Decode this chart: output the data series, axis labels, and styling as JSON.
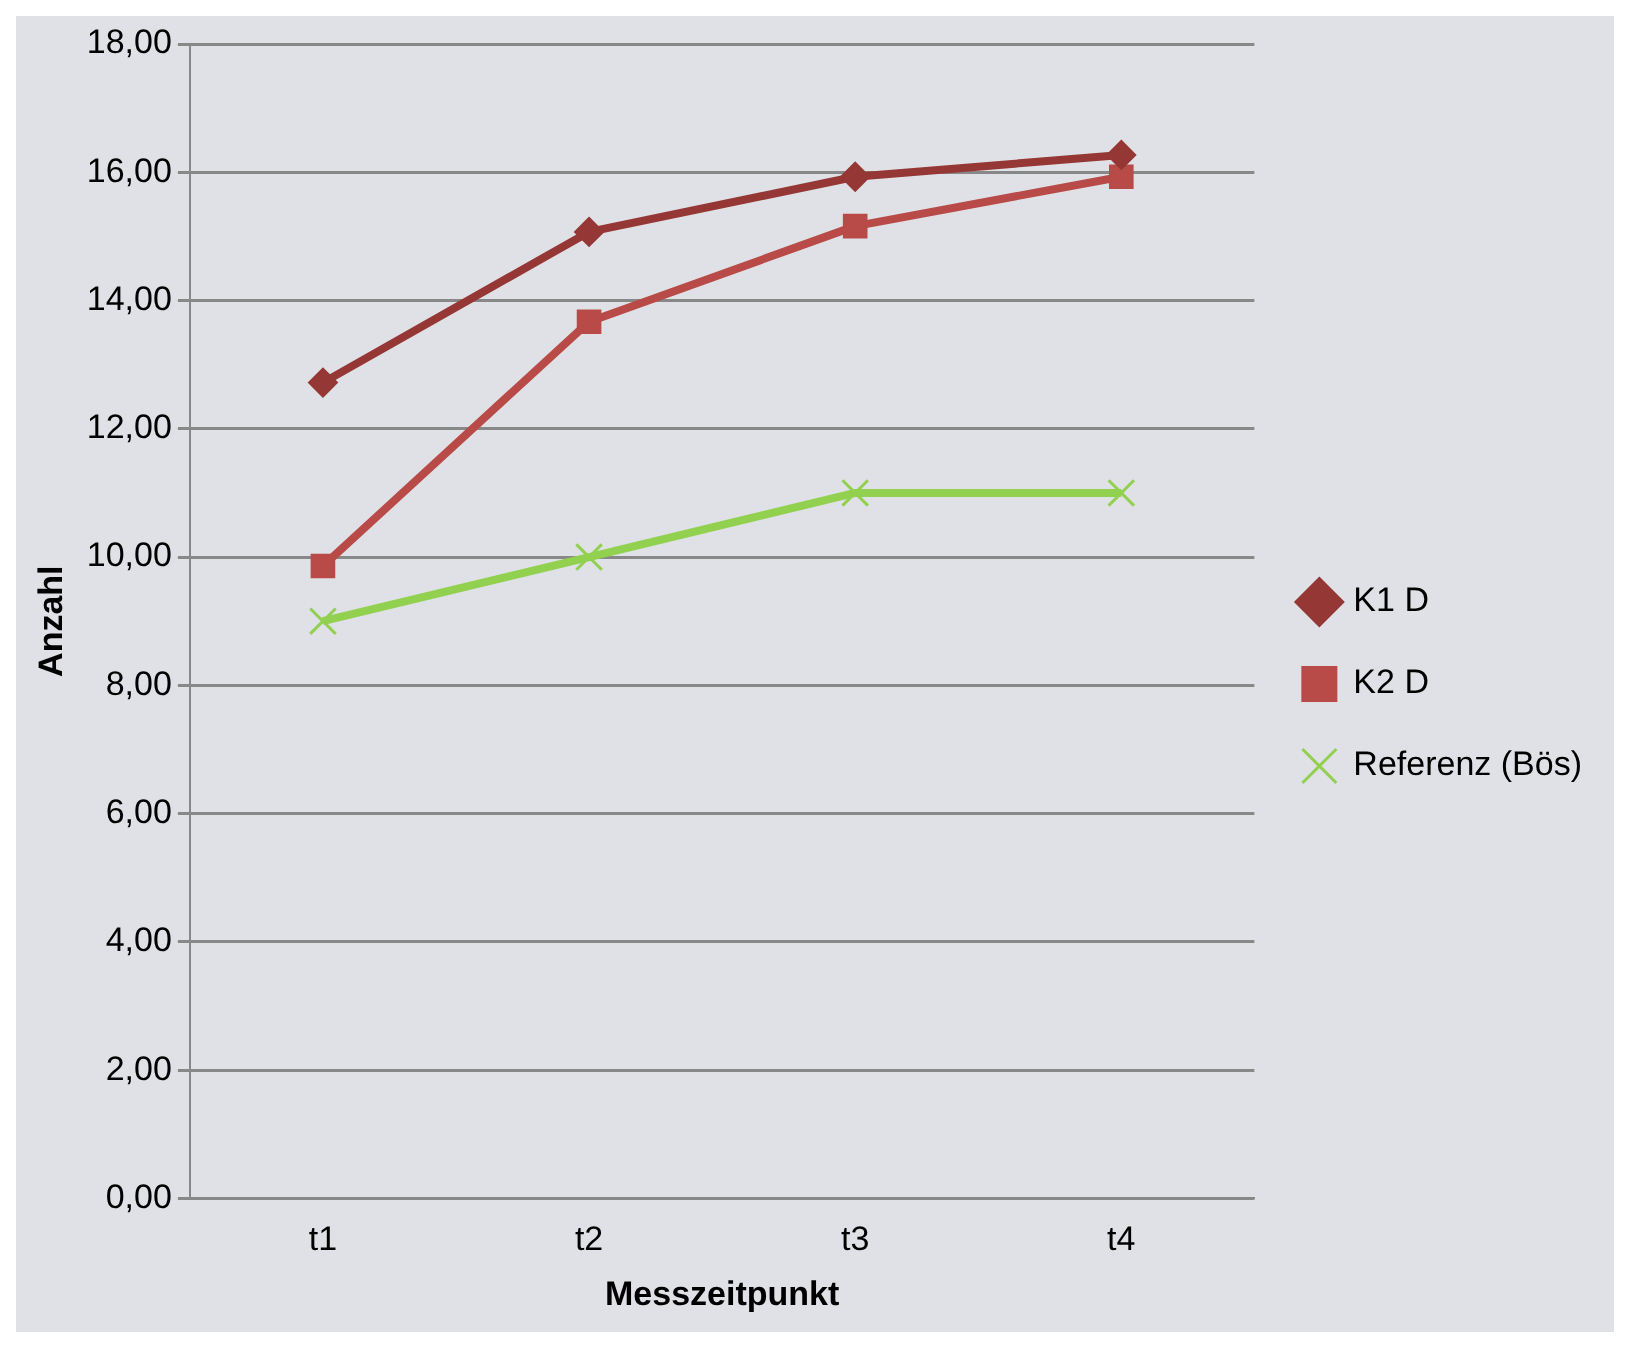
{
  "chart_data": {
    "type": "line",
    "xlabel": "Messzeitpunkt",
    "ylabel": "Anzahl",
    "categories": [
      "t1",
      "t2",
      "t3",
      "t4"
    ],
    "series": [
      {
        "name": "K1 D",
        "color": "#953735",
        "marker": "diamond",
        "values": [
          12.72,
          15.07,
          15.93,
          16.27
        ]
      },
      {
        "name": "K2 D",
        "color": "#b84a47",
        "marker": "square",
        "values": [
          9.86,
          13.67,
          15.16,
          15.93
        ]
      },
      {
        "name": "Referenz (Bös)",
        "color": "#92d050",
        "marker": "cross",
        "values": [
          9,
          10,
          11,
          11
        ]
      }
    ],
    "ylim": [
      0,
      18
    ],
    "yticks": [
      {
        "value": 0,
        "label": "0,00"
      },
      {
        "value": 2,
        "label": "2,00"
      },
      {
        "value": 4,
        "label": "4,00"
      },
      {
        "value": 6,
        "label": "6,00"
      },
      {
        "value": 8,
        "label": "8,00"
      },
      {
        "value": 10,
        "label": "10,00"
      },
      {
        "value": 12,
        "label": "12,00"
      },
      {
        "value": 14,
        "label": "14,00"
      },
      {
        "value": 16,
        "label": "16,00"
      },
      {
        "value": 18,
        "label": "18,00"
      }
    ],
    "grid": "y",
    "legend": "right"
  }
}
